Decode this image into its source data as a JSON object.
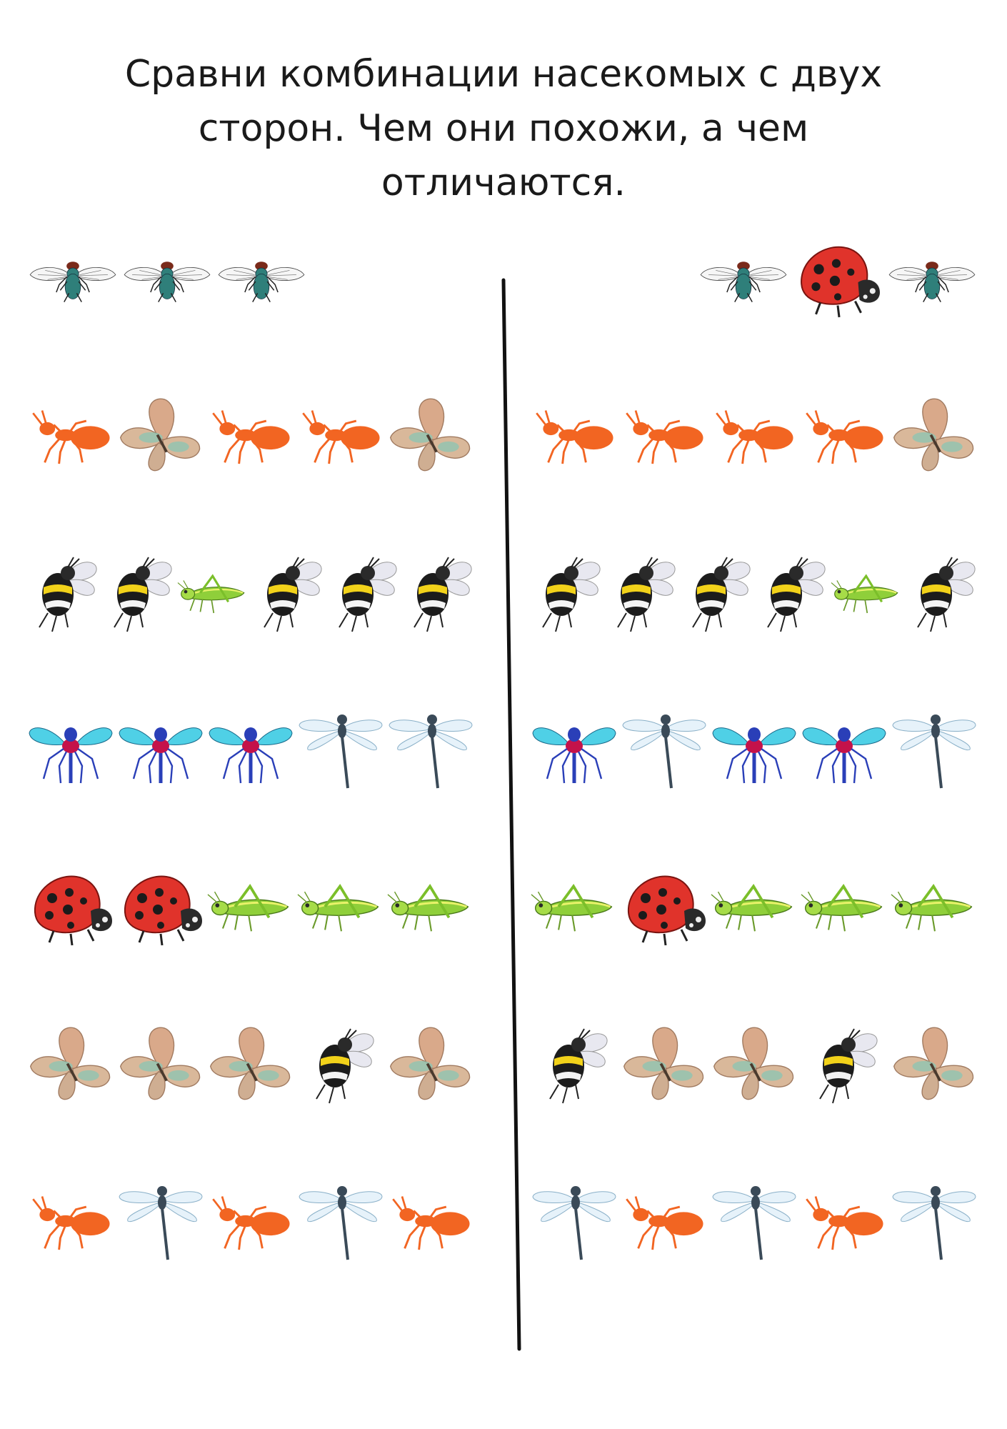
{
  "instruction": {
    "line1": "Сравни комбинации насекомых с двух",
    "line2": "сторон. Чем они похожи, а чем",
    "line3": "отличаются."
  },
  "colors": {
    "fly": "#2f7f7a",
    "ladybug": "#e0332b",
    "ant": "#f26522",
    "butterfly": "#d9b89a",
    "bee_stripe": "#f2d21a",
    "grasshopper": "#8fcf3a",
    "mosquito": "#2a3fb8",
    "dragonfly": "#3a4a58"
  },
  "legend_icons": [
    "fly-icon",
    "ladybug-icon",
    "ant-icon",
    "butterfly-icon",
    "bee-icon",
    "grasshopper-icon",
    "mosquito-icon",
    "dragonfly-icon"
  ],
  "rows": [
    {
      "left": [
        "fly",
        "fly",
        "fly"
      ],
      "right": [
        "fly",
        "ladybug",
        "fly"
      ]
    },
    {
      "left": [
        "ant",
        "butterfly",
        "ant",
        "ant",
        "butterfly"
      ],
      "right": [
        "ant",
        "ant",
        "ant",
        "ant",
        "butterfly"
      ]
    },
    {
      "left": [
        "bee",
        "bee",
        "grasshopper",
        "bee",
        "bee",
        "bee"
      ],
      "right": [
        "bee",
        "bee",
        "bee",
        "bee",
        "grasshopper",
        "bee"
      ]
    },
    {
      "left": [
        "mosquito",
        "mosquito",
        "mosquito",
        "dragonfly",
        "dragonfly"
      ],
      "right": [
        "mosquito",
        "dragonfly",
        "mosquito",
        "mosquito",
        "dragonfly"
      ]
    },
    {
      "left": [
        "ladybug",
        "ladybug",
        "grasshopper",
        "grasshopper",
        "grasshopper"
      ],
      "right": [
        "grasshopper",
        "ladybug",
        "grasshopper",
        "grasshopper",
        "grasshopper"
      ]
    },
    {
      "left": [
        "butterfly",
        "butterfly",
        "butterfly",
        "bee",
        "butterfly"
      ],
      "right": [
        "bee",
        "butterfly",
        "butterfly",
        "bee",
        "butterfly"
      ]
    },
    {
      "left": [
        "ant",
        "dragonfly",
        "ant",
        "dragonfly",
        "ant"
      ],
      "right": [
        "dragonfly",
        "ant",
        "dragonfly",
        "ant",
        "dragonfly"
      ]
    }
  ]
}
